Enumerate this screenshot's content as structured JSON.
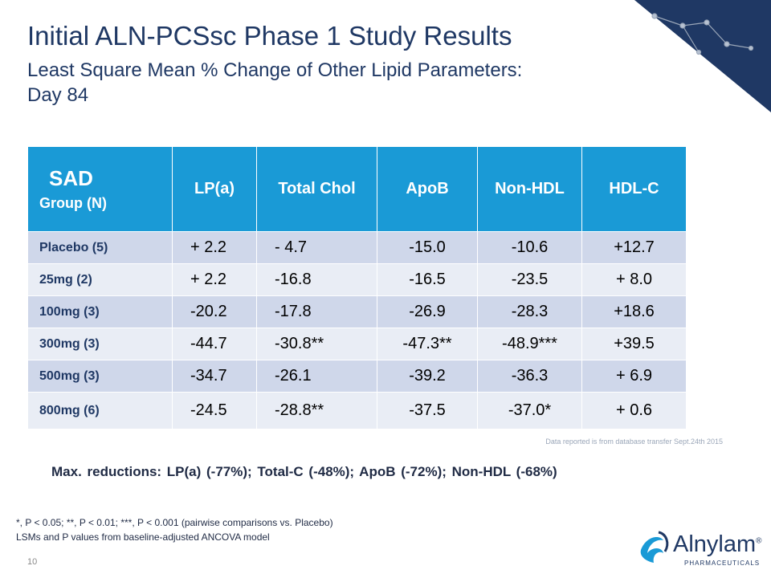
{
  "header": {
    "title": "Initial ALN-PCSsc Phase 1 Study Results",
    "subtitle_line1": "Least Square Mean % Change of Other Lipid Parameters:",
    "subtitle_line2": "Day 84"
  },
  "table": {
    "group_heading": "SAD",
    "group_subheading": "Group  (N)",
    "columns": [
      "LP(a)",
      "Total Chol",
      "ApoB",
      "Non-HDL",
      "HDL-C"
    ],
    "rows": [
      {
        "label": "Placebo  (5)",
        "values": [
          "+ 2.2",
          "-  4.7",
          "-15.0",
          "-10.6",
          "+12.7"
        ]
      },
      {
        "label": "25mg      (2)",
        "values": [
          "+ 2.2",
          "-16.8",
          "-16.5",
          "-23.5",
          "+  8.0"
        ]
      },
      {
        "label": "100mg    (3)",
        "values": [
          "-20.2",
          "-17.8",
          "-26.9",
          "-28.3",
          "+18.6"
        ]
      },
      {
        "label": "300mg    (3)",
        "values": [
          "-44.7",
          "-30.8**",
          "-47.3**",
          "-48.9***",
          "+39.5"
        ]
      },
      {
        "label": "500mg    (3)",
        "values": [
          "-34.7",
          "-26.1",
          "-39.2",
          "-36.3",
          "+  6.9"
        ]
      },
      {
        "label": "800mg    (6)",
        "values": [
          "-24.5",
          "-28.8**",
          "-37.5",
          "-37.0*",
          "+  0.6"
        ]
      }
    ]
  },
  "source_note": "Data reported is from database transfer Sept.24th 2015",
  "max_reductions": "Max. reductions: LP(a) (-77%); Total-C (-48%); ApoB (-72%); Non-HDL (-68%)",
  "footnote_line1": "*, P < 0.05; **, P < 0.01; ***, P < 0.001 (pairwise comparisons vs. Placebo)",
  "footnote_line2": "LSMs and P values from baseline-adjusted ANCOVA model",
  "page_number": "10",
  "logo": {
    "name": "Alnylam",
    "registered": "®",
    "tagline": "PHARMACEUTICALS"
  },
  "colors": {
    "header_blue": "#1a9ad6",
    "navy": "#1f3864",
    "row_dark": "#cfd7ea",
    "row_light": "#e9edf5"
  }
}
